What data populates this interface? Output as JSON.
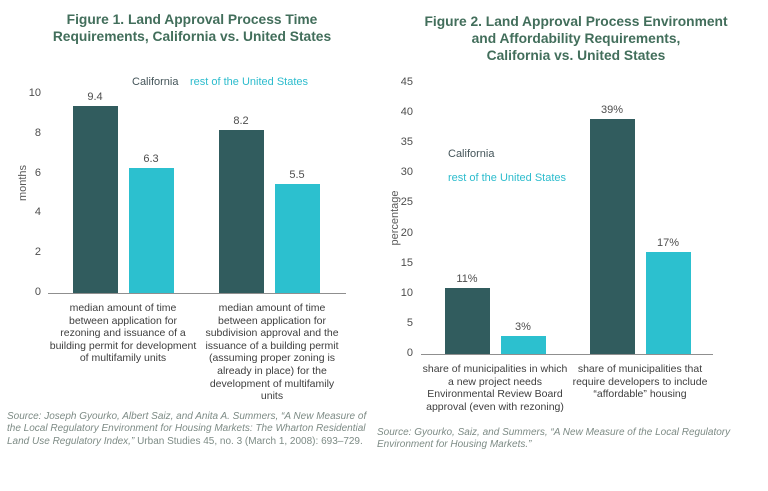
{
  "page": {
    "background": "#ffffff"
  },
  "colors": {
    "california_bar": "#315c5e",
    "rest_of_us_bar": "#2cc0cf",
    "title_text": "#426e5b",
    "legend_california_text": "#445459",
    "legend_rest_text": "#2cbccd",
    "axis_text": "#4d4d4d",
    "category_text": "#3e3e3e",
    "source_text": "#7d8b85",
    "axis_line": "#8f8f8f"
  },
  "fig1": {
    "title": "Figure 1. Land Approval Process Time\nRequirements, California vs. United States",
    "ylabel": "months",
    "source_segments": [
      {
        "text": "Source: Joseph Gyourko, Albert Saiz, and Anita A. Summers, “A New Measure of the Local Regulatory Environment for Housing Markets: The Wharton Residential Land Use Regulatory Index,” ",
        "italic": true
      },
      {
        "text": "Urban Studies 45, no. 3 (March 1, 2008): 693–729.",
        "italic": false
      }
    ]
  },
  "fig2": {
    "title": "Figure 2. Land Approval Process Environment\nand Affordability Requirements,\nCalifornia vs. United States",
    "ylabel": "percentage",
    "source_segments": [
      {
        "text": "Source: Gyourko, Saiz, and Summers, “A New Measure of the Local Regulatory Environment for Housing Markets.”",
        "italic": true
      }
    ]
  },
  "chart_data": [
    {
      "type": "bar",
      "title": "Figure 1. Land Approval Process Time Requirements, California vs. United States",
      "xlabel": "",
      "ylabel": "months",
      "ylim": [
        0,
        10
      ],
      "yticks": [
        0,
        2,
        4,
        6,
        8,
        10
      ],
      "grid": false,
      "legend_position": "top-center",
      "categories": [
        "median amount of time\nbetween application for\nrezoning and issuance of a\nbuilding permit for development\nof multifamily units",
        "median amount of time\nbetween application for\nsubdivision approval and the\nissuance of a building permit\n(assuming proper zoning is\nalready in place) for the\ndevelopment of multifamily\nunits"
      ],
      "series": [
        {
          "name": "California",
          "color": "#315c5e",
          "values": [
            9.4,
            8.2
          ],
          "value_labels": [
            "9.4",
            "8.2"
          ]
        },
        {
          "name": "rest of the United States",
          "color": "#2cc0cf",
          "values": [
            6.3,
            5.5
          ],
          "value_labels": [
            "6.3",
            "5.5"
          ]
        }
      ]
    },
    {
      "type": "bar",
      "title": "Figure 2. Land Approval Process Environment and Affordability Requirements, California vs. United States",
      "xlabel": "",
      "ylabel": "percentage",
      "ylim": [
        0,
        45
      ],
      "yticks": [
        0,
        5,
        10,
        15,
        20,
        25,
        30,
        35,
        40,
        45
      ],
      "grid": false,
      "legend_position": "inside-upper-left",
      "categories": [
        "share of municipalities in which\na new project needs\nEnvironmental Review Board\napproval (even with rezoning)",
        "share of municipalities that\nrequire developers to include\n“affordable” housing"
      ],
      "series": [
        {
          "name": "California",
          "color": "#315c5e",
          "values": [
            11,
            39
          ],
          "value_labels": [
            "11%",
            "39%"
          ]
        },
        {
          "name": "rest of the United States",
          "color": "#2cc0cf",
          "values": [
            3,
            17
          ],
          "value_labels": [
            "3%",
            "17%"
          ]
        }
      ]
    }
  ]
}
